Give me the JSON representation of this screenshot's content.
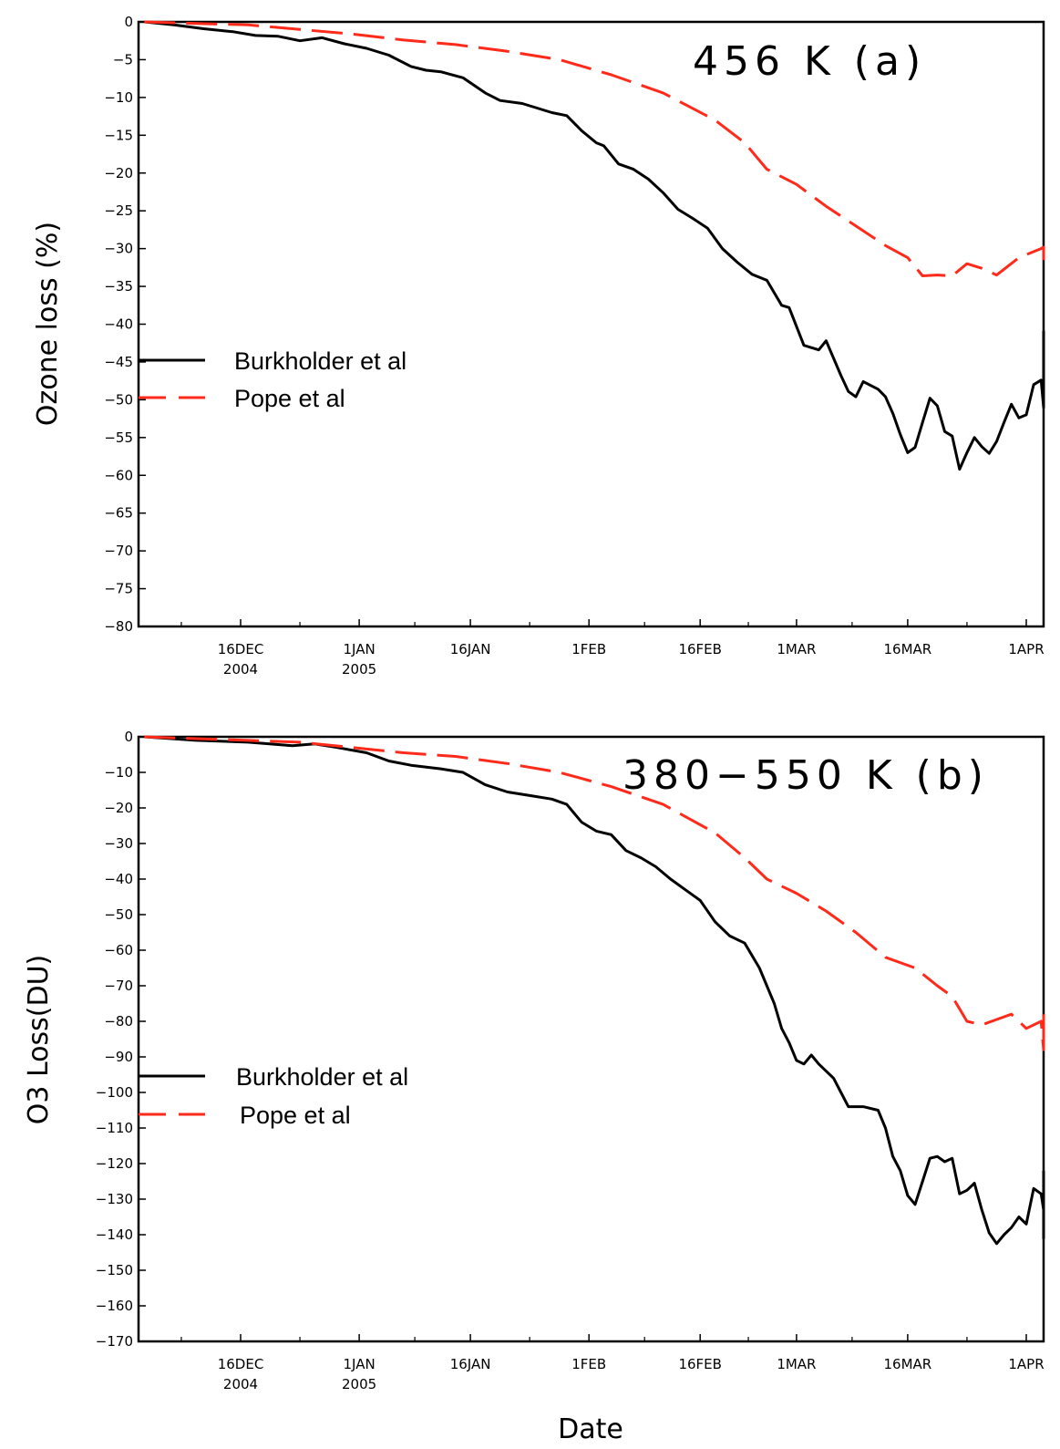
{
  "figure": {
    "xlabel": "Date"
  },
  "chart_data": [
    {
      "type": "line",
      "title": "456 K (a)",
      "ylabel": "Ozone loss (%)",
      "xlabel": "",
      "x_type": "date",
      "xlim": [
        "2004-12-03",
        "2005-04-05"
      ],
      "ylim": [
        -80,
        0
      ],
      "yticks": [
        0,
        -5,
        -10,
        -15,
        -20,
        -25,
        -30,
        -35,
        -40,
        -45,
        -50,
        -55,
        -60,
        -65,
        -70,
        -75,
        -80
      ],
      "xticks": [
        {
          "date": "2004-12-16",
          "label": "16DEC",
          "label2": "2004"
        },
        {
          "date": "2005-01-01",
          "label": "1JAN",
          "label2": "2005"
        },
        {
          "date": "2005-01-16",
          "label": "16JAN",
          "label2": ""
        },
        {
          "date": "2005-02-01",
          "label": "1FEB",
          "label2": ""
        },
        {
          "date": "2005-02-16",
          "label": "16FEB",
          "label2": ""
        },
        {
          "date": "2005-03-01",
          "label": "1MAR",
          "label2": ""
        },
        {
          "date": "2005-03-16",
          "label": "16MAR",
          "label2": ""
        },
        {
          "date": "2005-04-01",
          "label": "1APR",
          "label2": ""
        }
      ],
      "legend_position": "center-left",
      "series": [
        {
          "name": "Burkholder et al",
          "color": "#000000",
          "dash": "solid",
          "points": [
            [
              "2004-12-03",
              0
            ],
            [
              "2004-12-07",
              -0.4
            ],
            [
              "2004-12-11",
              -0.9
            ],
            [
              "2004-12-15",
              -1.3
            ],
            [
              "2004-12-18",
              -1.8
            ],
            [
              "2004-12-21",
              -1.9
            ],
            [
              "2004-12-24",
              -2.5
            ],
            [
              "2004-12-27",
              -2.1
            ],
            [
              "2004-12-30",
              -2.9
            ],
            [
              "2005-01-02",
              -3.5
            ],
            [
              "2005-01-05",
              -4.4
            ],
            [
              "2005-01-08",
              -5.9
            ],
            [
              "2005-01-10",
              -6.4
            ],
            [
              "2005-01-12",
              -6.6
            ],
            [
              "2005-01-15",
              -7.4
            ],
            [
              "2005-01-18",
              -9.4
            ],
            [
              "2005-01-20",
              -10.4
            ],
            [
              "2005-01-23",
              -10.8
            ],
            [
              "2005-01-25",
              -11.4
            ],
            [
              "2005-01-27",
              -12.0
            ],
            [
              "2005-01-29",
              -12.4
            ],
            [
              "2005-01-31",
              -14.4
            ],
            [
              "2005-02-02",
              -16.0
            ],
            [
              "2005-02-03",
              -16.4
            ],
            [
              "2005-02-05",
              -18.8
            ],
            [
              "2005-02-07",
              -19.5
            ],
            [
              "2005-02-09",
              -20.8
            ],
            [
              "2005-02-11",
              -22.6
            ],
            [
              "2005-02-13",
              -24.8
            ],
            [
              "2005-02-15",
              -26.0
            ],
            [
              "2005-02-17",
              -27.3
            ],
            [
              "2005-02-19",
              -30.0
            ],
            [
              "2005-02-21",
              -31.8
            ],
            [
              "2005-02-23",
              -33.4
            ],
            [
              "2005-02-25",
              -34.2
            ],
            [
              "2005-02-27",
              -37.5
            ],
            [
              "2005-02-28",
              -37.8
            ],
            [
              "2005-03-02",
              -42.8
            ],
            [
              "2005-03-04",
              -43.4
            ],
            [
              "2005-03-05",
              -42.2
            ],
            [
              "2005-03-07",
              -46.8
            ],
            [
              "2005-03-08",
              -48.9
            ],
            [
              "2005-03-09",
              -49.6
            ],
            [
              "2005-03-10",
              -47.6
            ],
            [
              "2005-03-12",
              -48.6
            ],
            [
              "2005-03-13",
              -49.6
            ],
            [
              "2005-03-14",
              -51.8
            ],
            [
              "2005-03-15",
              -54.6
            ],
            [
              "2005-03-16",
              -57.0
            ],
            [
              "2005-03-17",
              -56.3
            ],
            [
              "2005-03-18",
              -53.0
            ],
            [
              "2005-03-19",
              -49.8
            ],
            [
              "2005-03-20",
              -50.8
            ],
            [
              "2005-03-21",
              -54.2
            ],
            [
              "2005-03-22",
              -54.8
            ],
            [
              "2005-03-23",
              -59.2
            ],
            [
              "2005-03-24",
              -57.0
            ],
            [
              "2005-03-25",
              -55.0
            ],
            [
              "2005-03-26",
              -56.2
            ],
            [
              "2005-03-27",
              -57.1
            ],
            [
              "2005-03-28",
              -55.5
            ],
            [
              "2005-03-29",
              -53.0
            ],
            [
              "2005-03-30",
              -50.6
            ],
            [
              "2005-03-31",
              -52.4
            ],
            [
              "2005-04-01",
              -52.0
            ],
            [
              "2005-04-02",
              -48.0
            ],
            [
              "2005-04-03",
              -47.4
            ],
            [
              "2005-04-04",
              -51.0
            ],
            [
              "2005-04-05",
              -45.2
            ],
            [
              "2005-04-06",
              -42.6
            ],
            [
              "2005-04-07",
              -41.0
            ],
            [
              "2005-04-08",
              -41.0
            ],
            [
              "2005-04-09",
              -42.0
            ],
            [
              "2005-04-10",
              -44.6
            ]
          ]
        },
        {
          "name": "Pope et al",
          "color": "#ff2a1a",
          "dash": "dashed",
          "points": [
            [
              "2004-12-03",
              0
            ],
            [
              "2004-12-10",
              -0.2
            ],
            [
              "2004-12-17",
              -0.4
            ],
            [
              "2004-12-24",
              -1.0
            ],
            [
              "2004-12-31",
              -1.6
            ],
            [
              "2005-01-07",
              -2.4
            ],
            [
              "2005-01-14",
              -3.0
            ],
            [
              "2005-01-21",
              -3.9
            ],
            [
              "2005-01-28",
              -5.0
            ],
            [
              "2005-02-04",
              -7.0
            ],
            [
              "2005-02-11",
              -9.4
            ],
            [
              "2005-02-18",
              -13.0
            ],
            [
              "2005-02-22",
              -16.0
            ],
            [
              "2005-02-25",
              -19.5
            ],
            [
              "2005-03-01",
              -21.5
            ],
            [
              "2005-03-05",
              -24.4
            ],
            [
              "2005-03-09",
              -27.0
            ],
            [
              "2005-03-13",
              -29.6
            ],
            [
              "2005-03-16",
              -31.2
            ],
            [
              "2005-03-18",
              -33.6
            ],
            [
              "2005-03-20",
              -33.5
            ],
            [
              "2005-03-22",
              -33.6
            ],
            [
              "2005-03-24",
              -32.0
            ],
            [
              "2005-03-26",
              -32.6
            ],
            [
              "2005-03-28",
              -33.5
            ],
            [
              "2005-03-31",
              -31.2
            ],
            [
              "2005-04-03",
              -30.0
            ],
            [
              "2005-04-06",
              -29.8
            ],
            [
              "2005-04-08",
              -30.5
            ],
            [
              "2005-04-10",
              -31.6
            ]
          ]
        }
      ]
    },
    {
      "type": "line",
      "title": "380−550 K (b)",
      "ylabel": "O3 Loss(DU)",
      "xlabel": "Date",
      "x_type": "date",
      "xlim": [
        "2004-12-03",
        "2005-04-05"
      ],
      "ylim": [
        -170,
        0
      ],
      "yticks": [
        0,
        -10,
        -20,
        -30,
        -40,
        -50,
        -60,
        -70,
        -80,
        -90,
        -100,
        -110,
        -120,
        -130,
        -140,
        -150,
        -160,
        -170
      ],
      "xticks": [
        {
          "date": "2004-12-16",
          "label": "16DEC",
          "label2": "2004"
        },
        {
          "date": "2005-01-01",
          "label": "1JAN",
          "label2": "2005"
        },
        {
          "date": "2005-01-16",
          "label": "16JAN",
          "label2": ""
        },
        {
          "date": "2005-02-01",
          "label": "1FEB",
          "label2": ""
        },
        {
          "date": "2005-02-16",
          "label": "16FEB",
          "label2": ""
        },
        {
          "date": "2005-03-01",
          "label": "1MAR",
          "label2": ""
        },
        {
          "date": "2005-03-16",
          "label": "16MAR",
          "label2": ""
        },
        {
          "date": "2005-04-01",
          "label": "1APR",
          "label2": ""
        }
      ],
      "legend_position": "center-left",
      "series": [
        {
          "name": "Burkholder et al",
          "color": "#000000",
          "dash": "solid",
          "points": [
            [
              "2004-12-03",
              0
            ],
            [
              "2004-12-10",
              -1.0
            ],
            [
              "2004-12-17",
              -1.5
            ],
            [
              "2004-12-23",
              -2.5
            ],
            [
              "2004-12-26",
              -2.0
            ],
            [
              "2004-12-29",
              -3.0
            ],
            [
              "2005-01-02",
              -4.5
            ],
            [
              "2005-01-05",
              -6.8
            ],
            [
              "2005-01-08",
              -8.0
            ],
            [
              "2005-01-12",
              -9.0
            ],
            [
              "2005-01-15",
              -10.0
            ],
            [
              "2005-01-18",
              -13.5
            ],
            [
              "2005-01-21",
              -15.5
            ],
            [
              "2005-01-24",
              -16.5
            ],
            [
              "2005-01-27",
              -17.5
            ],
            [
              "2005-01-29",
              -19.0
            ],
            [
              "2005-01-31",
              -24.0
            ],
            [
              "2005-02-02",
              -26.5
            ],
            [
              "2005-02-04",
              -27.5
            ],
            [
              "2005-02-06",
              -32.0
            ],
            [
              "2005-02-08",
              -34.0
            ],
            [
              "2005-02-10",
              -36.5
            ],
            [
              "2005-02-12",
              -40.0
            ],
            [
              "2005-02-14",
              -43.0
            ],
            [
              "2005-02-16",
              -46.0
            ],
            [
              "2005-02-18",
              -52.0
            ],
            [
              "2005-02-20",
              -56.0
            ],
            [
              "2005-02-22",
              -58.0
            ],
            [
              "2005-02-24",
              -65.0
            ],
            [
              "2005-02-26",
              -75.0
            ],
            [
              "2005-02-27",
              -82.0
            ],
            [
              "2005-02-28",
              -86.0
            ],
            [
              "2005-03-01",
              -91.0
            ],
            [
              "2005-03-02",
              -92.0
            ],
            [
              "2005-03-03",
              -89.5
            ],
            [
              "2005-03-04",
              -92.0
            ],
            [
              "2005-03-06",
              -96.0
            ],
            [
              "2005-03-07",
              -100.0
            ],
            [
              "2005-03-08",
              -104.0
            ],
            [
              "2005-03-10",
              -104.0
            ],
            [
              "2005-03-12",
              -105.0
            ],
            [
              "2005-03-13",
              -110.0
            ],
            [
              "2005-03-14",
              -118.0
            ],
            [
              "2005-03-15",
              -122.0
            ],
            [
              "2005-03-16",
              -129.0
            ],
            [
              "2005-03-17",
              -131.5
            ],
            [
              "2005-03-18",
              -125.0
            ],
            [
              "2005-03-19",
              -118.5
            ],
            [
              "2005-03-20",
              -118.0
            ],
            [
              "2005-03-21",
              -119.5
            ],
            [
              "2005-03-22",
              -118.5
            ],
            [
              "2005-03-23",
              -128.5
            ],
            [
              "2005-03-24",
              -127.5
            ],
            [
              "2005-03-25",
              -125.5
            ],
            [
              "2005-03-26",
              -133.0
            ],
            [
              "2005-03-27",
              -139.5
            ],
            [
              "2005-03-28",
              -142.5
            ],
            [
              "2005-03-29",
              -140.0
            ],
            [
              "2005-03-30",
              -138.0
            ],
            [
              "2005-03-31",
              -135.0
            ],
            [
              "2005-04-01",
              -137.0
            ],
            [
              "2005-04-02",
              -127.0
            ],
            [
              "2005-04-03",
              -128.5
            ],
            [
              "2005-04-04",
              -133.0
            ],
            [
              "2005-04-05",
              -124.0
            ],
            [
              "2005-04-06",
              -133.0
            ],
            [
              "2005-04-07",
              -141.0
            ],
            [
              "2005-04-08",
              -125.5
            ],
            [
              "2005-04-09",
              -133.0
            ],
            [
              "2005-04-10",
              -122.0
            ]
          ]
        },
        {
          "name": "Pope et al",
          "color": "#ff2a1a",
          "dash": "dashed",
          "points": [
            [
              "2004-12-03",
              0
            ],
            [
              "2004-12-10",
              -0.5
            ],
            [
              "2004-12-17",
              -1.0
            ],
            [
              "2004-12-24",
              -1.5
            ],
            [
              "2004-12-31",
              -3.0
            ],
            [
              "2005-01-07",
              -4.5
            ],
            [
              "2005-01-14",
              -5.5
            ],
            [
              "2005-01-21",
              -7.5
            ],
            [
              "2005-01-28",
              -10.0
            ],
            [
              "2005-02-04",
              -14.0
            ],
            [
              "2005-02-11",
              -19.0
            ],
            [
              "2005-02-18",
              -27.0
            ],
            [
              "2005-02-22",
              -34.0
            ],
            [
              "2005-02-25",
              -40.0
            ],
            [
              "2005-03-01",
              -44.0
            ],
            [
              "2005-03-05",
              -49.0
            ],
            [
              "2005-03-09",
              -55.0
            ],
            [
              "2005-03-13",
              -62.0
            ],
            [
              "2005-03-17",
              -65.0
            ],
            [
              "2005-03-20",
              -70.0
            ],
            [
              "2005-03-22",
              -73.0
            ],
            [
              "2005-03-24",
              -80.0
            ],
            [
              "2005-03-26",
              -81.0
            ],
            [
              "2005-03-28",
              -79.5
            ],
            [
              "2005-03-30",
              -78.0
            ],
            [
              "2005-04-01",
              -82.0
            ],
            [
              "2005-04-03",
              -80.0
            ],
            [
              "2005-04-05",
              -88.0
            ],
            [
              "2005-04-06",
              -84.0
            ],
            [
              "2005-04-07",
              -86.5
            ],
            [
              "2005-04-08",
              -85.0
            ],
            [
              "2005-04-10",
              -78.0
            ]
          ]
        }
      ]
    }
  ]
}
